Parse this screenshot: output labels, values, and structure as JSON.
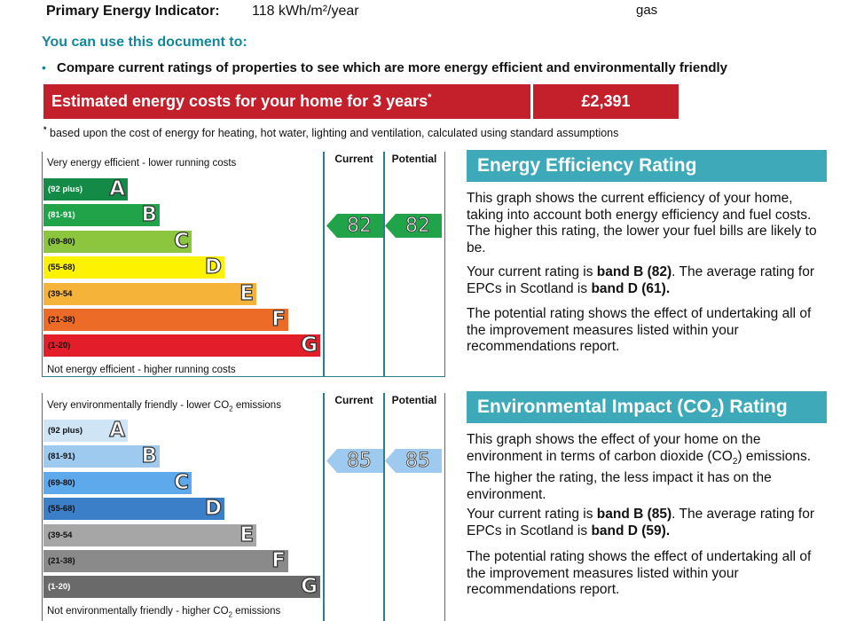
{
  "header": {
    "pei_label": "Primary Energy Indicator:",
    "pei_value": "118 kWh/m²/year",
    "fuel_fragment": "gas"
  },
  "usage": {
    "heading": "You can use this document to:",
    "bullet": "Compare current ratings of properties to see which are more energy efficient and environmentally friendly"
  },
  "costs": {
    "label": "Estimated energy costs for your home for 3 years",
    "value": "£2,391",
    "footnote": "based upon the cost of energy for heating, hot water, lighting and ventilation, calculated using standard assumptions"
  },
  "energy_chart": {
    "top_caption": "Very energy efficient - lower running costs",
    "bottom_caption": "Not energy efficient - higher running costs",
    "col_current": "Current",
    "col_potential": "Potential",
    "current": "82",
    "potential": "82",
    "bands": [
      {
        "range": "(92 plus)",
        "letter": "A",
        "color": "#138a46"
      },
      {
        "range": "(81-91)",
        "letter": "B",
        "color": "#21a34a"
      },
      {
        "range": "(69-80)",
        "letter": "C",
        "color": "#8cc63f"
      },
      {
        "range": "(55-68)",
        "letter": "D",
        "color": "#fdf200"
      },
      {
        "range": "(39-54",
        "letter": "E",
        "color": "#f6b33a"
      },
      {
        "range": "(21-38)",
        "letter": "F",
        "color": "#ec6b27"
      },
      {
        "range": "(1-20)",
        "letter": "G",
        "color": "#e31d2a"
      }
    ]
  },
  "env_chart": {
    "top_caption_pre": "Very environmentally friendly - lower CO",
    "top_caption_sub": "2",
    "top_caption_post": " emissions",
    "bottom_caption_pre": "Not environmentally friendly - higher CO",
    "bottom_caption_sub": "2",
    "bottom_caption_post": " emissions",
    "col_current": "Current",
    "col_potential": "Potential",
    "current": "85",
    "potential": "85",
    "bands": [
      {
        "range": "(92 plus)",
        "letter": "A",
        "color": "#cfe5f5"
      },
      {
        "range": "(81-91)",
        "letter": "B",
        "color": "#9fcaef"
      },
      {
        "range": "(69-80)",
        "letter": "C",
        "color": "#5ea8ec"
      },
      {
        "range": "(55-68)",
        "letter": "D",
        "color": "#3b7fc8"
      },
      {
        "range": "(39-54",
        "letter": "E",
        "color": "#a6a6a6"
      },
      {
        "range": "(21-38)",
        "letter": "F",
        "color": "#8a8a8a"
      },
      {
        "range": "(1-20)",
        "letter": "G",
        "color": "#6a6a6a"
      }
    ]
  },
  "energy_rating": {
    "heading": "Energy Efficiency Rating",
    "p1": "This graph shows the current efficiency of your home, taking into account both energy efficiency and fuel costs. The higher this rating, the lower your fuel bills are likely to be.",
    "p2_a": "Your current rating is ",
    "p2_b": "band B (82)",
    "p2_c": ". The average rating for EPCs in Scotland is ",
    "p2_d": "band D (61).",
    "p3": "The potential rating shows the effect of undertaking all of the improvement measures listed within your recommendations report."
  },
  "env_rating": {
    "heading_pre": "Environmental Impact (CO",
    "heading_sub": "2",
    "heading_post": ") Rating",
    "p1_a": "This graph shows the effect of your home on the environment in terms of carbon dioxide (CO",
    "p1_sub": "2",
    "p1_b": ") emissions. The higher the rating, the less impact it has on the environment.",
    "p2_a": "Your current rating is ",
    "p2_b": "band B (85)",
    "p2_c": ". The average rating for EPCs in Scotland is ",
    "p2_d": "band D (59).",
    "p3": "The potential rating shows the effect of undertaking all of the improvement measures listed within your recommendations report."
  }
}
